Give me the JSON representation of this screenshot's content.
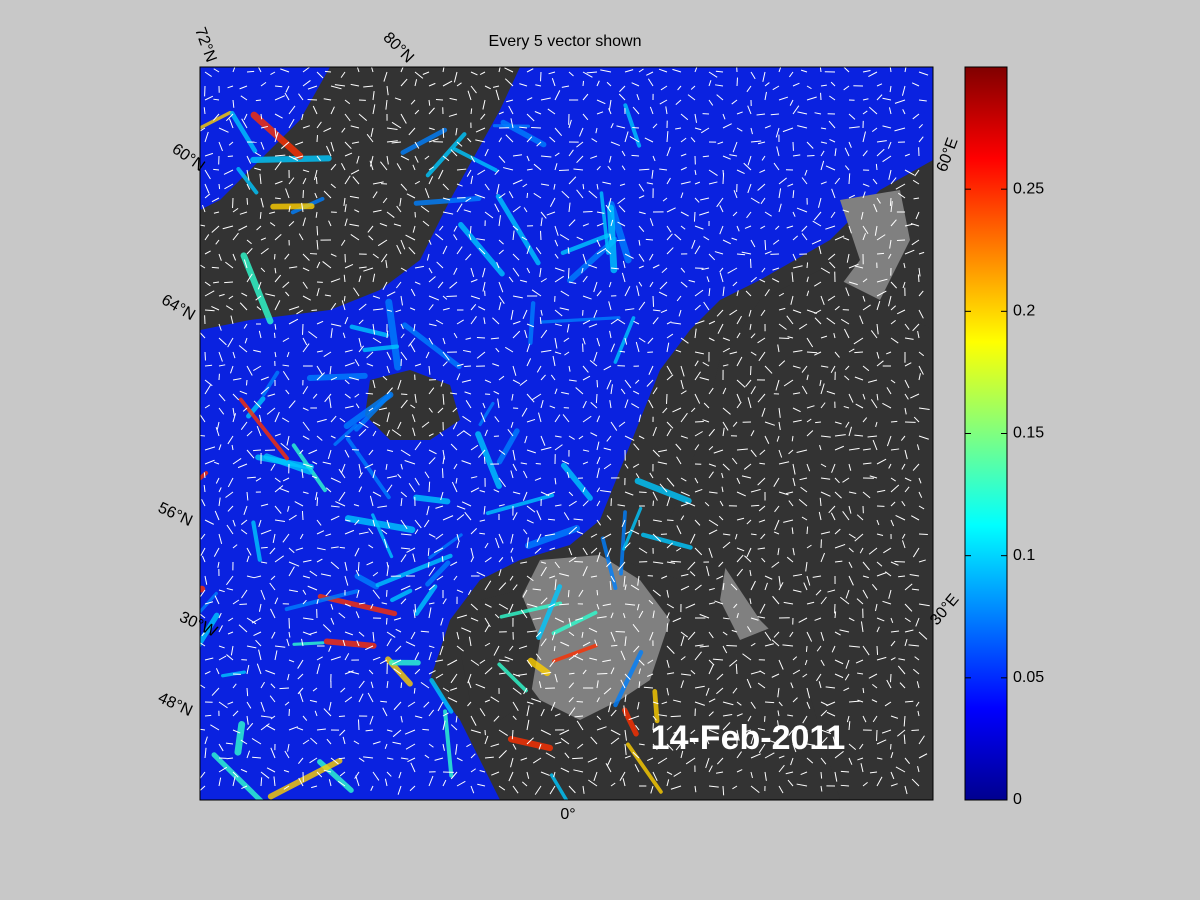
{
  "map": {
    "title": "Every 5 vector shown",
    "date": "14-Feb-2011",
    "graticule_labels": [
      "72°N",
      "80°N",
      "60°N",
      "64°N",
      "56°N",
      "30°W",
      "48°N",
      "60°E",
      "30°E",
      "0°"
    ]
  },
  "colorbar": {
    "lim": [
      0,
      0.3
    ],
    "ticks": [
      0,
      0.05,
      0.1,
      0.15,
      0.2,
      0.25
    ]
  }
}
